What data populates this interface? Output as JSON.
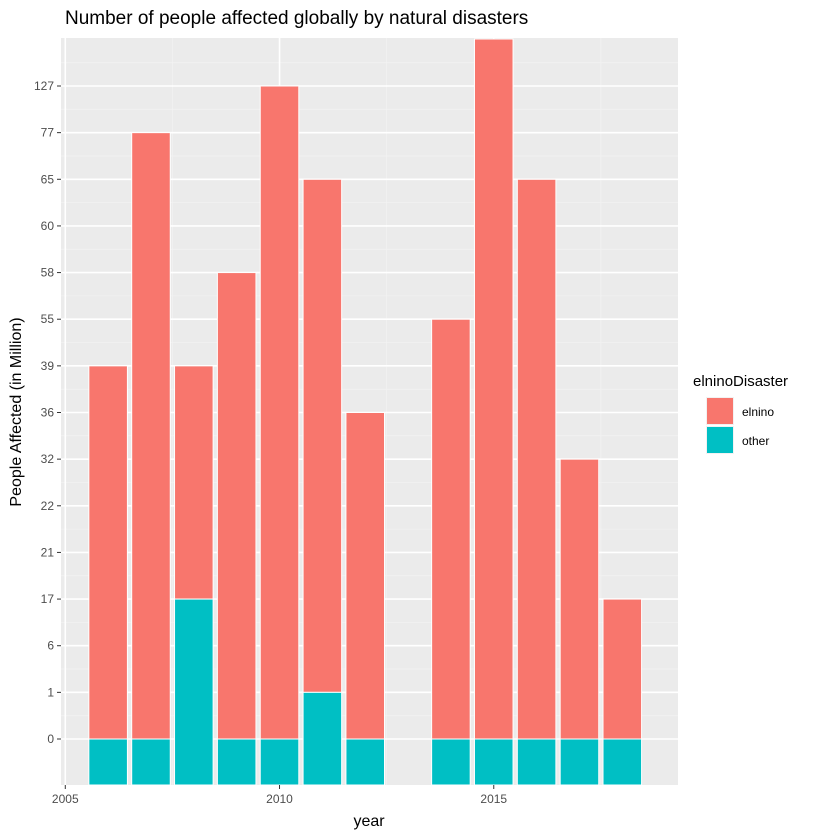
{
  "chart_data": {
    "type": "bar",
    "stacked": true,
    "title": "Number of people affected globally by natural disasters",
    "xlabel": "year",
    "ylabel": "People Affected (in Million)",
    "x_ticks": [
      2005,
      2010,
      2015
    ],
    "x_range": [
      2004.9,
      2019.3
    ],
    "y_tick_labels": [
      "0",
      "1",
      "6",
      "17",
      "21",
      "22",
      "32",
      "36",
      "39",
      "55",
      "58",
      "60",
      "65",
      "77",
      "127"
    ],
    "y_scale": "discrete-levels",
    "grid": true,
    "legend": {
      "title": "elninoDisaster",
      "position": "right",
      "entries": [
        {
          "label": "elnino",
          "color": "#F8766D"
        },
        {
          "label": "other",
          "color": "#00BFC4"
        }
      ]
    },
    "bars": [
      {
        "year": 2006,
        "other": 0,
        "total": 39
      },
      {
        "year": 2007,
        "other": 0,
        "total": 77
      },
      {
        "year": 2008,
        "other": 17,
        "total": 39
      },
      {
        "year": 2009,
        "other": 0,
        "total": 58
      },
      {
        "year": 2010,
        "other": 0,
        "total": 127
      },
      {
        "year": 2011,
        "other": 1,
        "total": 65
      },
      {
        "year": 2012,
        "other": 0,
        "total": 36
      },
      {
        "year": 2014,
        "other": 0,
        "total": 55
      },
      {
        "year": 2015,
        "other": 0,
        "total": 150
      },
      {
        "year": 2016,
        "other": 0,
        "total": 65
      },
      {
        "year": 2017,
        "other": 0,
        "total": 32
      },
      {
        "year": 2018,
        "other": 0,
        "total": 17
      }
    ]
  }
}
